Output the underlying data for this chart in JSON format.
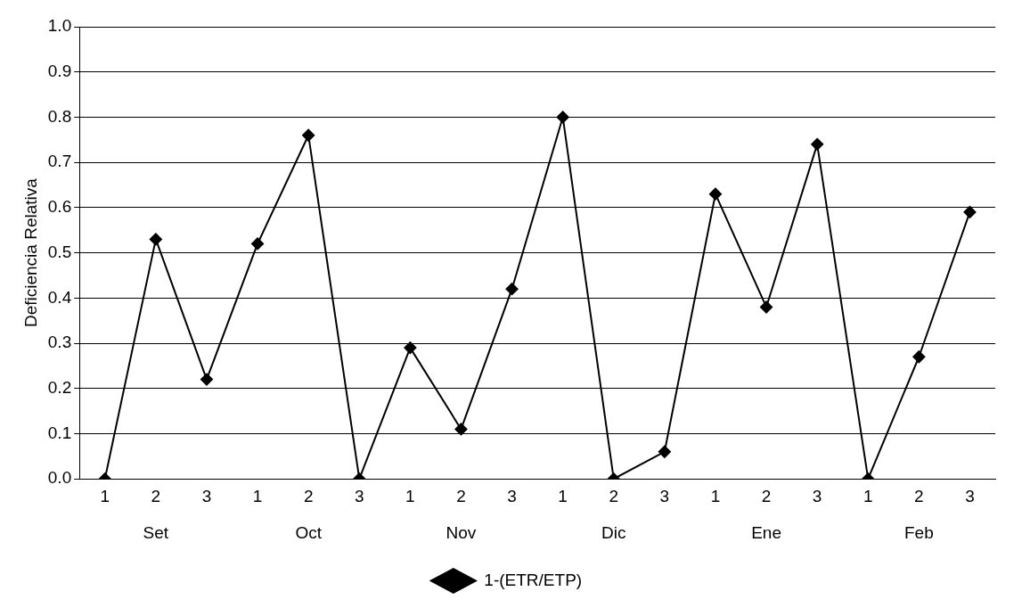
{
  "chart_data": {
    "type": "line",
    "ylabel": "Deficiencia Relativa",
    "categories": [
      "1",
      "2",
      "3",
      "1",
      "2",
      "3",
      "1",
      "2",
      "3",
      "1",
      "2",
      "3",
      "1",
      "2",
      "3",
      "1",
      "2",
      "3"
    ],
    "series": [
      {
        "name": "1-(ETR/ETP)",
        "color": "#000000",
        "values": [
          0,
          0.53,
          0.22,
          0.52,
          0.76,
          0,
          0.29,
          0.11,
          0.42,
          0.8,
          0,
          0.06,
          0.63,
          0.38,
          0.74,
          0,
          0.27,
          0.59
        ]
      }
    ],
    "annotations": [
      "Set",
      "Oct",
      "Nov",
      "Dic",
      "Ene",
      "Feb"
    ],
    "ylim": [
      0,
      1
    ],
    "yticks": [
      {
        "value": 0,
        "label": "0.0"
      },
      0.1,
      0.2,
      0.3,
      0.4,
      0.5,
      0.6,
      0.7,
      0.8,
      0.9,
      {
        "value": 1,
        "label": "1.0"
      }
    ],
    "grid": "y",
    "legend": "bottom",
    "marker": "diamond",
    "line_style": "solid"
  }
}
